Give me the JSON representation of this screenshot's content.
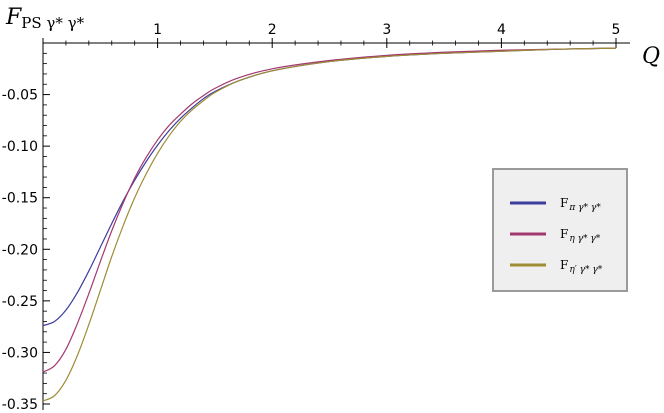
{
  "chart_data": {
    "type": "line",
    "ylabel": "F_PS γ* γ*",
    "ylabel_parts": {
      "main": "F",
      "sub": "PS γ* γ*"
    },
    "xlabel": "Q",
    "xlim": [
      0,
      5
    ],
    "ylim": [
      -0.35,
      0
    ],
    "x_ticks": [
      1,
      2,
      3,
      4,
      5
    ],
    "x_tick_labels": [
      "1",
      "2",
      "3",
      "4",
      "5"
    ],
    "y_ticks": [
      -0.05,
      -0.1,
      -0.15,
      -0.2,
      -0.25,
      -0.3,
      -0.35
    ],
    "y_tick_labels": [
      "-0.05",
      "-0.10",
      "-0.15",
      "-0.20",
      "-0.25",
      "-0.30",
      "-0.35"
    ],
    "grid": false,
    "legend_position": "right",
    "series": [
      {
        "name": "F_π γ* γ*",
        "name_parts": {
          "main": "F",
          "sub": "π γ* γ*"
        },
        "color": "#3d3d9e",
        "x": [
          0,
          0.1,
          0.2,
          0.3,
          0.4,
          0.5,
          0.6,
          0.7,
          0.8,
          0.9,
          1.0,
          1.1,
          1.2,
          1.3,
          1.4,
          1.5,
          1.7,
          2.0,
          2.5,
          3.0,
          3.5,
          4.0,
          4.5,
          5.0
        ],
        "values": [
          -0.274,
          -0.27,
          -0.259,
          -0.242,
          -0.221,
          -0.198,
          -0.175,
          -0.153,
          -0.133,
          -0.115,
          -0.099,
          -0.085,
          -0.073,
          -0.063,
          -0.054,
          -0.047,
          -0.037,
          -0.027,
          -0.018,
          -0.013,
          -0.01,
          -0.008,
          -0.006,
          -0.005
        ]
      },
      {
        "name": "F_η γ* γ*",
        "name_parts": {
          "main": "F",
          "sub": "η γ* γ*"
        },
        "color": "#a3386f",
        "x": [
          0,
          0.1,
          0.2,
          0.3,
          0.4,
          0.5,
          0.6,
          0.7,
          0.8,
          0.9,
          1.0,
          1.1,
          1.2,
          1.3,
          1.4,
          1.5,
          1.7,
          2.0,
          2.5,
          3.0,
          3.5,
          4.0,
          4.5,
          5.0
        ],
        "values": [
          -0.319,
          -0.313,
          -0.297,
          -0.272,
          -0.243,
          -0.212,
          -0.182,
          -0.155,
          -0.131,
          -0.111,
          -0.094,
          -0.08,
          -0.069,
          -0.059,
          -0.051,
          -0.044,
          -0.034,
          -0.025,
          -0.017,
          -0.012,
          -0.009,
          -0.007,
          -0.006,
          -0.005
        ]
      },
      {
        "name": "F_η' γ* γ*",
        "name_parts": {
          "main": "F",
          "sub": "η′ γ* γ*"
        },
        "color": "#9e8c35",
        "x": [
          0,
          0.1,
          0.2,
          0.3,
          0.4,
          0.5,
          0.6,
          0.7,
          0.8,
          0.9,
          1.0,
          1.1,
          1.2,
          1.3,
          1.4,
          1.5,
          1.7,
          2.0,
          2.5,
          3.0,
          3.5,
          4.0,
          4.5,
          5.0
        ],
        "values": [
          -0.347,
          -0.342,
          -0.327,
          -0.303,
          -0.273,
          -0.24,
          -0.207,
          -0.177,
          -0.15,
          -0.127,
          -0.107,
          -0.09,
          -0.076,
          -0.065,
          -0.056,
          -0.048,
          -0.037,
          -0.027,
          -0.018,
          -0.013,
          -0.01,
          -0.008,
          -0.006,
          -0.005
        ]
      }
    ]
  }
}
